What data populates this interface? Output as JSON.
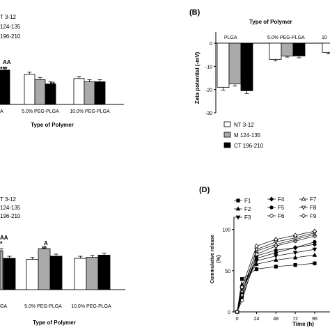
{
  "panel_b_letter": "(B)",
  "panel_d_letter": "(D)",
  "chart_data": [
    {
      "panel": "A",
      "type": "bar",
      "xlabel": "Type of Polymer",
      "categories": [
        "A",
        "5.0% PEG-PLGA",
        "10.0% PEG-PLGA"
      ],
      "series": [
        {
          "name": "T 3-12",
          "values": [
            null,
            28,
            24
          ]
        },
        {
          "name": "124-135",
          "values": [
            null,
            23,
            21
          ]
        },
        {
          "name": "196-210",
          "values": [
            32,
            19,
            21
          ]
        }
      ],
      "annotations": [
        {
          "category": "A",
          "text": "AA"
        },
        {
          "category": "A",
          "text": "***"
        },
        {
          "category": "5.0% PEG-PLGA",
          "text": "**"
        }
      ],
      "ymax_hint": 40,
      "legend": "top-left"
    },
    {
      "panel": "B",
      "type": "bar",
      "title": "Type of Polymer",
      "ylabel": "Zeta potential (-mV)",
      "categories": [
        "PLGA",
        "5.0% PEG-PLGA",
        "10"
      ],
      "series": [
        {
          "name": "NT 3-12",
          "values": [
            -19,
            -7,
            -4
          ]
        },
        {
          "name": "M 124-135",
          "values": [
            -17.5,
            -5.5,
            null
          ]
        },
        {
          "name": "CT 196-210",
          "values": [
            -20.5,
            -5.5,
            null
          ]
        }
      ],
      "errors": [
        [
          1.2,
          0.6,
          0.5
        ],
        [
          1.0,
          0.5,
          null
        ],
        [
          1.2,
          0.8,
          null
        ]
      ],
      "yticks": [
        0,
        -10,
        -20,
        -30
      ],
      "ylim": [
        -30,
        0
      ],
      "legend": "bottom-left"
    },
    {
      "panel": "C",
      "type": "bar",
      "xlabel": "Type of Polymer",
      "categories": [
        "GA",
        "5.0% PEG-PLGA",
        "10.0% PEG-PLGA"
      ],
      "series": [
        {
          "name": "T 3-12",
          "values": [
            null,
            28,
            29
          ]
        },
        {
          "name": "124-135",
          "values": [
            36,
            38,
            30
          ]
        },
        {
          "name": "196-210",
          "values": [
            29,
            31,
            32
          ]
        }
      ],
      "annotations": [
        {
          "category": "GA",
          "text": "AA"
        },
        {
          "category": "GA",
          "text": "*"
        },
        {
          "category": "5.0% PEG-PLGA",
          "text": "A"
        },
        {
          "category": "5.0% PEG-PLGA",
          "text": "**"
        }
      ],
      "legend": "top-left"
    },
    {
      "panel": "D",
      "type": "line",
      "xlabel": "Time (h)",
      "ylabel": "Cummulative release (%)",
      "x": [
        0,
        6,
        24,
        48,
        72,
        96
      ],
      "xticks": [
        "0",
        "24",
        "48",
        "72",
        "96"
      ],
      "yticks": [
        0,
        50,
        100
      ],
      "ylim": [
        0,
        115
      ],
      "xlim": [
        -4,
        115
      ],
      "series": [
        {
          "name": "F1",
          "marker": "square",
          "values": [
            0,
            40,
            52,
            55,
            57,
            59
          ]
        },
        {
          "name": "F2",
          "marker": "triangle-up",
          "values": [
            0,
            33,
            58,
            63,
            66,
            69
          ]
        },
        {
          "name": "F3",
          "marker": "triangle-down",
          "values": [
            0,
            28,
            62,
            68,
            72,
            76
          ]
        },
        {
          "name": "F4",
          "marker": "diamond",
          "values": [
            0,
            22,
            68,
            75,
            78,
            82
          ]
        },
        {
          "name": "F5",
          "marker": "circle",
          "values": [
            0,
            18,
            65,
            72,
            78,
            85
          ]
        },
        {
          "name": "F6",
          "marker": "circle-open",
          "values": [
            0,
            14,
            70,
            80,
            86,
            92
          ]
        },
        {
          "name": "F7",
          "marker": "triangle-up-open",
          "values": [
            0,
            25,
            74,
            82,
            88,
            94
          ]
        },
        {
          "name": "F8",
          "marker": "triangle-down-open",
          "values": [
            0,
            20,
            76,
            85,
            90,
            96
          ]
        },
        {
          "name": "F9",
          "marker": "diamond-open",
          "values": [
            0,
            30,
            80,
            88,
            93,
            98
          ]
        }
      ],
      "legend": "top-left"
    }
  ]
}
